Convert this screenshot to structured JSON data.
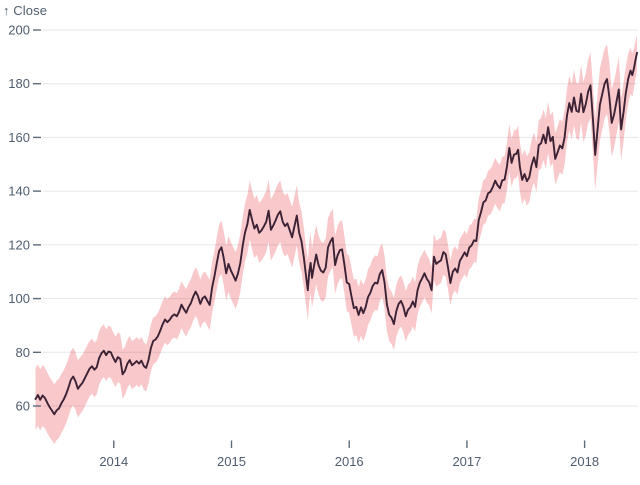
{
  "chart": {
    "y_axis_label": "↑ Close"
  },
  "colors": {
    "background": "#ffffff",
    "line": "#3b2235",
    "band": "#f9c8ca",
    "grid": "rgba(20,20,50,0.10)",
    "axis_text": "#4e5d6e",
    "tick_mark": "#5c6b7a"
  },
  "chart_data": {
    "type": "line",
    "title": "",
    "ylabel": "Close",
    "y_axis_label_display": "↑ Close",
    "legend": false,
    "grid": true,
    "x_ticks": [
      2014,
      2015,
      2016,
      2017,
      2018
    ],
    "y_ticks": [
      60,
      80,
      100,
      120,
      140,
      160,
      180,
      200
    ],
    "x_domain": [
      2013.335,
      2018.445
    ],
    "y_tick_range": [
      60,
      200
    ],
    "series": [
      {
        "name": "Close",
        "points": [
          [
            2013.335,
            62.6
          ],
          [
            2013.355,
            64.1
          ],
          [
            2013.375,
            62.3
          ],
          [
            2013.395,
            63.9
          ],
          [
            2013.415,
            63.0
          ],
          [
            2013.435,
            61.2
          ],
          [
            2013.455,
            59.6
          ],
          [
            2013.475,
            58.3
          ],
          [
            2013.495,
            56.9
          ],
          [
            2013.515,
            58.4
          ],
          [
            2013.535,
            59.1
          ],
          [
            2013.555,
            61.0
          ],
          [
            2013.575,
            62.5
          ],
          [
            2013.595,
            64.4
          ],
          [
            2013.615,
            66.9
          ],
          [
            2013.635,
            69.7
          ],
          [
            2013.655,
            71.0
          ],
          [
            2013.675,
            69.2
          ],
          [
            2013.695,
            66.4
          ],
          [
            2013.715,
            67.6
          ],
          [
            2013.735,
            68.7
          ],
          [
            2013.755,
            70.4
          ],
          [
            2013.775,
            72.2
          ],
          [
            2013.795,
            73.9
          ],
          [
            2013.815,
            74.8
          ],
          [
            2013.835,
            73.5
          ],
          [
            2013.855,
            74.4
          ],
          [
            2013.875,
            77.8
          ],
          [
            2013.895,
            79.6
          ],
          [
            2013.915,
            80.6
          ],
          [
            2013.935,
            78.9
          ],
          [
            2013.955,
            80.3
          ],
          [
            2013.975,
            80.0
          ],
          [
            2013.995,
            78.0
          ],
          [
            2014.015,
            76.4
          ],
          [
            2014.035,
            78.2
          ],
          [
            2014.055,
            77.5
          ],
          [
            2014.075,
            71.8
          ],
          [
            2014.095,
            73.1
          ],
          [
            2014.115,
            75.7
          ],
          [
            2014.135,
            77.1
          ],
          [
            2014.155,
            75.2
          ],
          [
            2014.175,
            75.9
          ],
          [
            2014.195,
            76.7
          ],
          [
            2014.215,
            75.8
          ],
          [
            2014.235,
            76.9
          ],
          [
            2014.255,
            74.9
          ],
          [
            2014.275,
            74.2
          ],
          [
            2014.295,
            77.1
          ],
          [
            2014.315,
            81.6
          ],
          [
            2014.335,
            84.2
          ],
          [
            2014.355,
            84.8
          ],
          [
            2014.375,
            86.0
          ],
          [
            2014.395,
            88.1
          ],
          [
            2014.415,
            90.4
          ],
          [
            2014.435,
            92.2
          ],
          [
            2014.455,
            91.2
          ],
          [
            2014.475,
            92.1
          ],
          [
            2014.495,
            93.4
          ],
          [
            2014.515,
            94.1
          ],
          [
            2014.535,
            93.4
          ],
          [
            2014.555,
            95.1
          ],
          [
            2014.575,
            97.7
          ],
          [
            2014.595,
            96.1
          ],
          [
            2014.615,
            94.7
          ],
          [
            2014.635,
            96.8
          ],
          [
            2014.655,
            98.3
          ],
          [
            2014.675,
            100.7
          ],
          [
            2014.695,
            102.6
          ],
          [
            2014.715,
            101.0
          ],
          [
            2014.735,
            98.0
          ],
          [
            2014.755,
            100.1
          ],
          [
            2014.775,
            100.8
          ],
          [
            2014.795,
            99.1
          ],
          [
            2014.815,
            97.6
          ],
          [
            2014.835,
            104.1
          ],
          [
            2014.855,
            108.2
          ],
          [
            2014.875,
            113.2
          ],
          [
            2014.895,
            117.7
          ],
          [
            2014.915,
            119.1
          ],
          [
            2014.935,
            114.9
          ],
          [
            2014.955,
            109.4
          ],
          [
            2014.975,
            112.9
          ],
          [
            2014.995,
            110.4
          ],
          [
            2015.015,
            108.6
          ],
          [
            2015.035,
            106.7
          ],
          [
            2015.055,
            109.4
          ],
          [
            2015.075,
            113.2
          ],
          [
            2015.095,
            119.7
          ],
          [
            2015.115,
            124.6
          ],
          [
            2015.135,
            127.7
          ],
          [
            2015.155,
            133.0
          ],
          [
            2015.175,
            129.3
          ],
          [
            2015.195,
            126.1
          ],
          [
            2015.215,
            127.5
          ],
          [
            2015.235,
            124.5
          ],
          [
            2015.255,
            125.4
          ],
          [
            2015.275,
            126.9
          ],
          [
            2015.295,
            128.6
          ],
          [
            2015.315,
            132.7
          ],
          [
            2015.335,
            125.6
          ],
          [
            2015.355,
            127.2
          ],
          [
            2015.375,
            129.1
          ],
          [
            2015.395,
            131.3
          ],
          [
            2015.415,
            132.5
          ],
          [
            2015.435,
            128.6
          ],
          [
            2015.455,
            127.0
          ],
          [
            2015.475,
            128.0
          ],
          [
            2015.495,
            125.4
          ],
          [
            2015.515,
            122.8
          ],
          [
            2015.535,
            127.0
          ],
          [
            2015.555,
            130.9
          ],
          [
            2015.575,
            124.4
          ],
          [
            2015.595,
            121.3
          ],
          [
            2015.615,
            115.1
          ],
          [
            2015.635,
            107.9
          ],
          [
            2015.648,
            103.1
          ],
          [
            2015.66,
            109.7
          ],
          [
            2015.672,
            113.3
          ],
          [
            2015.684,
            107.7
          ],
          [
            2015.7,
            111.9
          ],
          [
            2015.72,
            116.4
          ],
          [
            2015.74,
            112.4
          ],
          [
            2015.76,
            110.4
          ],
          [
            2015.78,
            109.7
          ],
          [
            2015.8,
            111.5
          ],
          [
            2015.82,
            119.0
          ],
          [
            2015.84,
            121.2
          ],
          [
            2015.86,
            122.6
          ],
          [
            2015.88,
            112.5
          ],
          [
            2015.9,
            115.9
          ],
          [
            2015.92,
            118.0
          ],
          [
            2015.94,
            118.3
          ],
          [
            2015.96,
            112.4
          ],
          [
            2015.98,
            106.0
          ],
          [
            2016.0,
            105.4
          ],
          [
            2016.02,
            100.6
          ],
          [
            2016.04,
            96.4
          ],
          [
            2016.06,
            96.9
          ],
          [
            2016.08,
            93.9
          ],
          [
            2016.1,
            96.7
          ],
          [
            2016.12,
            94.6
          ],
          [
            2016.14,
            96.9
          ],
          [
            2016.16,
            100.5
          ],
          [
            2016.18,
            102.2
          ],
          [
            2016.2,
            104.7
          ],
          [
            2016.22,
            105.9
          ],
          [
            2016.24,
            105.6
          ],
          [
            2016.26,
            109.1
          ],
          [
            2016.28,
            110.6
          ],
          [
            2016.3,
            106.1
          ],
          [
            2016.32,
            97.8
          ],
          [
            2016.34,
            94.0
          ],
          [
            2016.36,
            92.8
          ],
          [
            2016.38,
            90.5
          ],
          [
            2016.4,
            95.3
          ],
          [
            2016.42,
            98.0
          ],
          [
            2016.44,
            99.1
          ],
          [
            2016.46,
            97.1
          ],
          [
            2016.48,
            93.4
          ],
          [
            2016.5,
            95.9
          ],
          [
            2016.52,
            96.8
          ],
          [
            2016.54,
            98.9
          ],
          [
            2016.56,
            96.9
          ],
          [
            2016.58,
            103.0
          ],
          [
            2016.6,
            105.9
          ],
          [
            2016.62,
            107.6
          ],
          [
            2016.64,
            109.4
          ],
          [
            2016.66,
            107.3
          ],
          [
            2016.68,
            106.1
          ],
          [
            2016.7,
            103.1
          ],
          [
            2016.72,
            115.6
          ],
          [
            2016.74,
            112.9
          ],
          [
            2016.76,
            113.7
          ],
          [
            2016.78,
            114.2
          ],
          [
            2016.8,
            117.3
          ],
          [
            2016.82,
            116.5
          ],
          [
            2016.84,
            111.4
          ],
          [
            2016.86,
            105.8
          ],
          [
            2016.88,
            110.0
          ],
          [
            2016.9,
            111.2
          ],
          [
            2016.92,
            109.7
          ],
          [
            2016.94,
            114.0
          ],
          [
            2016.96,
            115.5
          ],
          [
            2016.98,
            117.2
          ],
          [
            2017.0,
            115.8
          ],
          [
            2017.02,
            119.0
          ],
          [
            2017.04,
            119.8
          ],
          [
            2017.06,
            121.7
          ],
          [
            2017.08,
            121.4
          ],
          [
            2017.1,
            129.2
          ],
          [
            2017.12,
            132.2
          ],
          [
            2017.14,
            135.8
          ],
          [
            2017.16,
            136.5
          ],
          [
            2017.18,
            139.2
          ],
          [
            2017.2,
            139.8
          ],
          [
            2017.22,
            141.5
          ],
          [
            2017.24,
            143.9
          ],
          [
            2017.26,
            142.2
          ],
          [
            2017.28,
            141.1
          ],
          [
            2017.3,
            144.0
          ],
          [
            2017.32,
            144.3
          ],
          [
            2017.34,
            149.0
          ],
          [
            2017.36,
            156.1
          ],
          [
            2017.38,
            150.5
          ],
          [
            2017.4,
            153.6
          ],
          [
            2017.42,
            153.9
          ],
          [
            2017.435,
            155.4
          ],
          [
            2017.45,
            148.9
          ],
          [
            2017.47,
            144.2
          ],
          [
            2017.49,
            146.4
          ],
          [
            2017.51,
            143.7
          ],
          [
            2017.53,
            145.2
          ],
          [
            2017.55,
            149.7
          ],
          [
            2017.57,
            152.6
          ],
          [
            2017.59,
            148.9
          ],
          [
            2017.61,
            157.1
          ],
          [
            2017.63,
            157.8
          ],
          [
            2017.65,
            161.0
          ],
          [
            2017.67,
            157.8
          ],
          [
            2017.69,
            163.8
          ],
          [
            2017.71,
            158.6
          ],
          [
            2017.73,
            160.2
          ],
          [
            2017.75,
            152.0
          ],
          [
            2017.77,
            154.3
          ],
          [
            2017.79,
            157.0
          ],
          [
            2017.81,
            155.9
          ],
          [
            2017.83,
            160.0
          ],
          [
            2017.85,
            168.2
          ],
          [
            2017.87,
            172.8
          ],
          [
            2017.89,
            169.5
          ],
          [
            2017.91,
            174.9
          ],
          [
            2017.93,
            169.9
          ],
          [
            2017.95,
            169.5
          ],
          [
            2017.97,
            176.3
          ],
          [
            2017.99,
            169.4
          ],
          [
            2018.01,
            172.4
          ],
          [
            2018.03,
            177.1
          ],
          [
            2018.05,
            179.4
          ],
          [
            2018.07,
            166.9
          ],
          [
            2018.09,
            153.5
          ],
          [
            2018.11,
            163.1
          ],
          [
            2018.13,
            172.2
          ],
          [
            2018.15,
            176.2
          ],
          [
            2018.17,
            180.0
          ],
          [
            2018.19,
            181.7
          ],
          [
            2018.21,
            175.2
          ],
          [
            2018.23,
            165.4
          ],
          [
            2018.25,
            168.4
          ],
          [
            2018.27,
            173.1
          ],
          [
            2018.29,
            177.9
          ],
          [
            2018.31,
            163.0
          ],
          [
            2018.33,
            169.3
          ],
          [
            2018.35,
            176.5
          ],
          [
            2018.37,
            181.8
          ],
          [
            2018.39,
            184.9
          ],
          [
            2018.405,
            183.2
          ],
          [
            2018.42,
            185.9
          ],
          [
            2018.43,
            188.3
          ],
          [
            2018.445,
            191.5
          ]
        ]
      }
    ],
    "band": {
      "name": "range band around close",
      "halfwidth_anchors": [
        [
          2013.335,
          11.5
        ],
        [
          2013.75,
          10.5
        ],
        [
          2014.1,
          9.0
        ],
        [
          2014.5,
          8.5
        ],
        [
          2014.85,
          9.5
        ],
        [
          2015.0,
          10.5
        ],
        [
          2015.35,
          11.5
        ],
        [
          2015.75,
          11.0
        ],
        [
          2016.1,
          10.5
        ],
        [
          2016.45,
          9.5
        ],
        [
          2016.75,
          8.5
        ],
        [
          2017.05,
          8.0
        ],
        [
          2017.4,
          9.0
        ],
        [
          2017.7,
          9.5
        ],
        [
          2017.95,
          10.5
        ],
        [
          2018.12,
          13.5
        ],
        [
          2018.3,
          12.0
        ],
        [
          2018.445,
          6.5
        ]
      ]
    }
  }
}
